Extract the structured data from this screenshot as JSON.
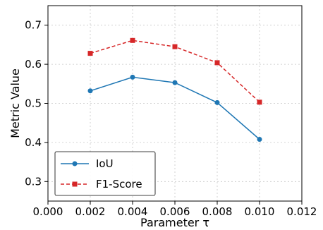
{
  "chart_data": {
    "type": "line",
    "title": "",
    "xlabel": "Parameter τ",
    "ylabel": "Metric Value",
    "xlim": [
      0.0,
      0.012
    ],
    "ylim": [
      0.25,
      0.75
    ],
    "x_ticks": [
      "0.000",
      "0.002",
      "0.004",
      "0.006",
      "0.008",
      "0.010",
      "0.012"
    ],
    "y_ticks": [
      "0.3",
      "0.4",
      "0.5",
      "0.6",
      "0.7"
    ],
    "grid": true,
    "legend_position": "lower-left",
    "x": [
      0.002,
      0.004,
      0.006,
      0.008,
      0.01
    ],
    "series": [
      {
        "name": "IoU",
        "values": [
          0.532,
          0.567,
          0.553,
          0.502,
          0.408
        ],
        "color": "#1f77b4",
        "marker": "circle",
        "linestyle": "solid"
      },
      {
        "name": "F1-Score",
        "values": [
          0.628,
          0.661,
          0.645,
          0.604,
          0.503
        ],
        "color": "#d62728",
        "marker": "square",
        "linestyle": "dashed"
      }
    ]
  }
}
